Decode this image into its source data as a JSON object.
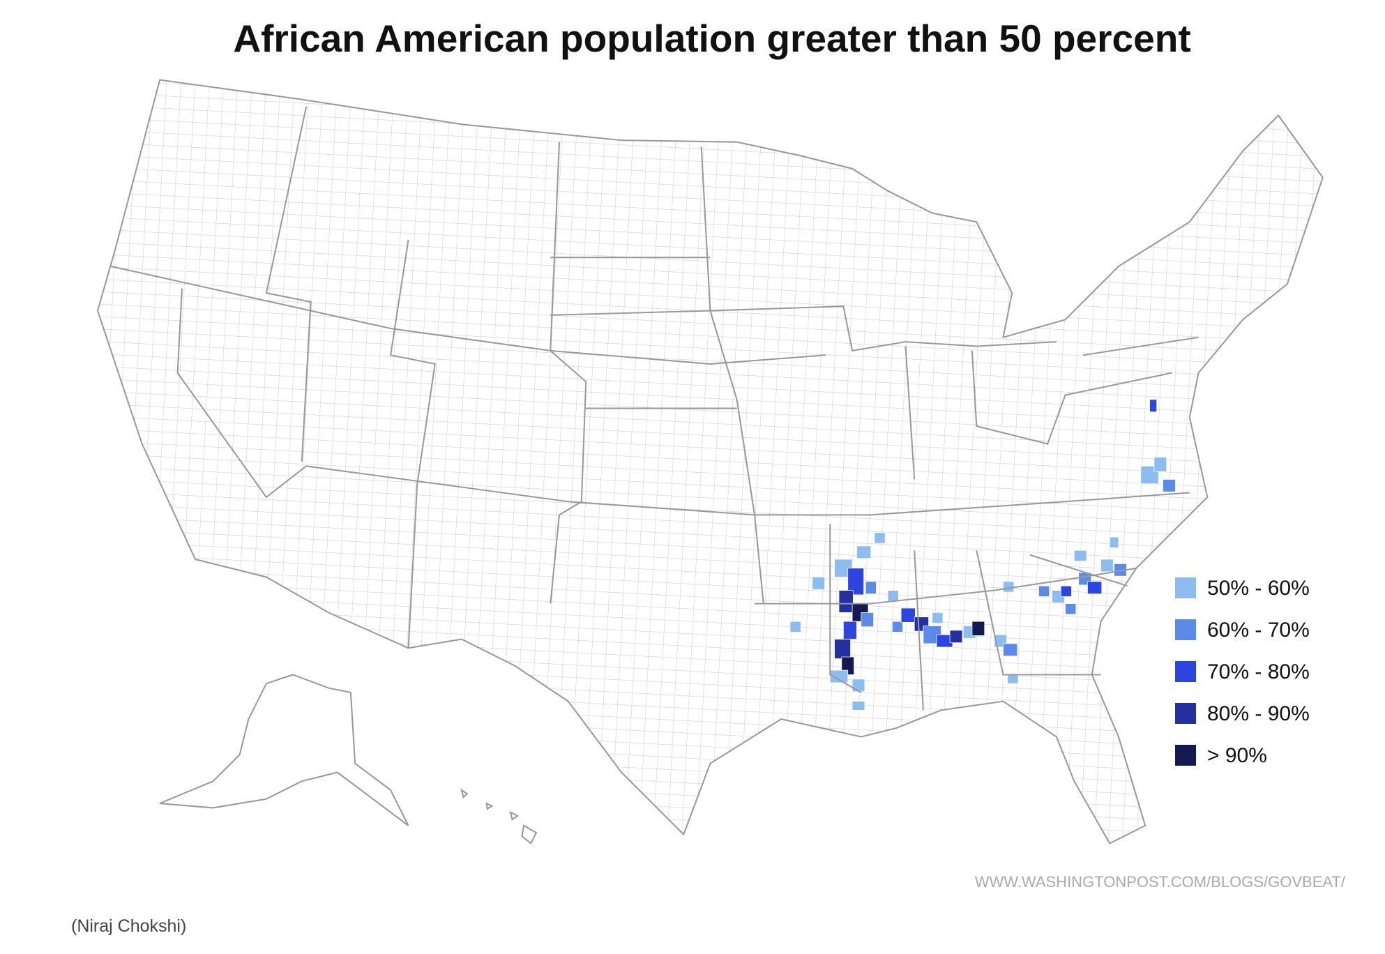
{
  "title": "African American population greater than 50 percent",
  "legend": {
    "items": [
      {
        "label": "50% - 60%",
        "color": "#8dbdf0"
      },
      {
        "label": "60% - 70%",
        "color": "#5a8be8"
      },
      {
        "label": "70% - 80%",
        "color": "#2d45e0"
      },
      {
        "label": "80% - 90%",
        "color": "#2530a0"
      },
      {
        "label": "> 90%",
        "color": "#141a50"
      }
    ]
  },
  "source": "WWW.WASHINGTONPOST.COM/BLOGS/GOVBEAT/",
  "credit": "(Niraj Chokshi)"
}
